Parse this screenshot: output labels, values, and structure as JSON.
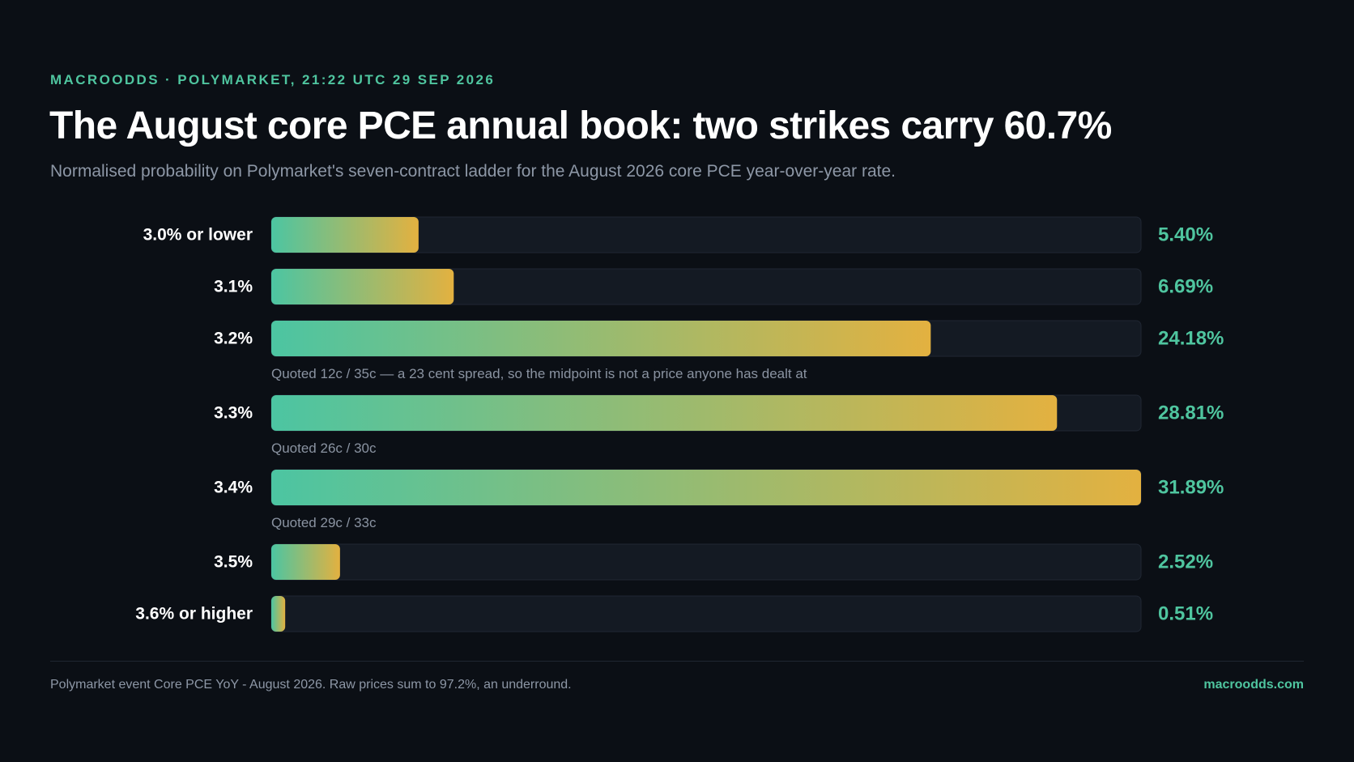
{
  "header": {
    "kicker": "MACROODDS · POLYMARKET, 21:22 UTC 29 SEP 2026",
    "title": "The August core PCE annual book: two strikes carry 60.7%",
    "subtitle": "Normalised probability on Polymarket's seven-contract ladder for the August 2026 core PCE year-over-year rate."
  },
  "colors": {
    "background": "#0b0f15",
    "track": "#141a23",
    "track_border": "#202733",
    "gradient_start": "#4cc5a2",
    "gradient_end": "#e3b140",
    "accent": "#4fc59f"
  },
  "chart_data": {
    "type": "bar",
    "orientation": "horizontal",
    "categories": [
      "3.0% or lower",
      "3.1%",
      "3.2%",
      "3.3%",
      "3.4%",
      "3.5%",
      "3.6% or higher"
    ],
    "values": [
      5.4,
      6.69,
      24.18,
      28.81,
      31.89,
      2.52,
      0.51
    ],
    "value_labels": [
      "5.40%",
      "6.69%",
      "24.18%",
      "28.81%",
      "31.89%",
      "2.52%",
      "0.51%"
    ],
    "notes": [
      "",
      "",
      "Quoted 12c / 35c — a 23 cent spread, so the midpoint is not a price anyone has dealt at",
      "Quoted 26c / 30c",
      "Quoted 29c / 33c",
      "",
      ""
    ],
    "xlim": [
      0,
      31.89
    ],
    "grid": false,
    "legend": "none"
  },
  "footer": {
    "source": "Polymarket event Core PCE YoY - August 2026. Raw prices sum to 97.2%, an underround.",
    "site": "macroodds.com"
  }
}
